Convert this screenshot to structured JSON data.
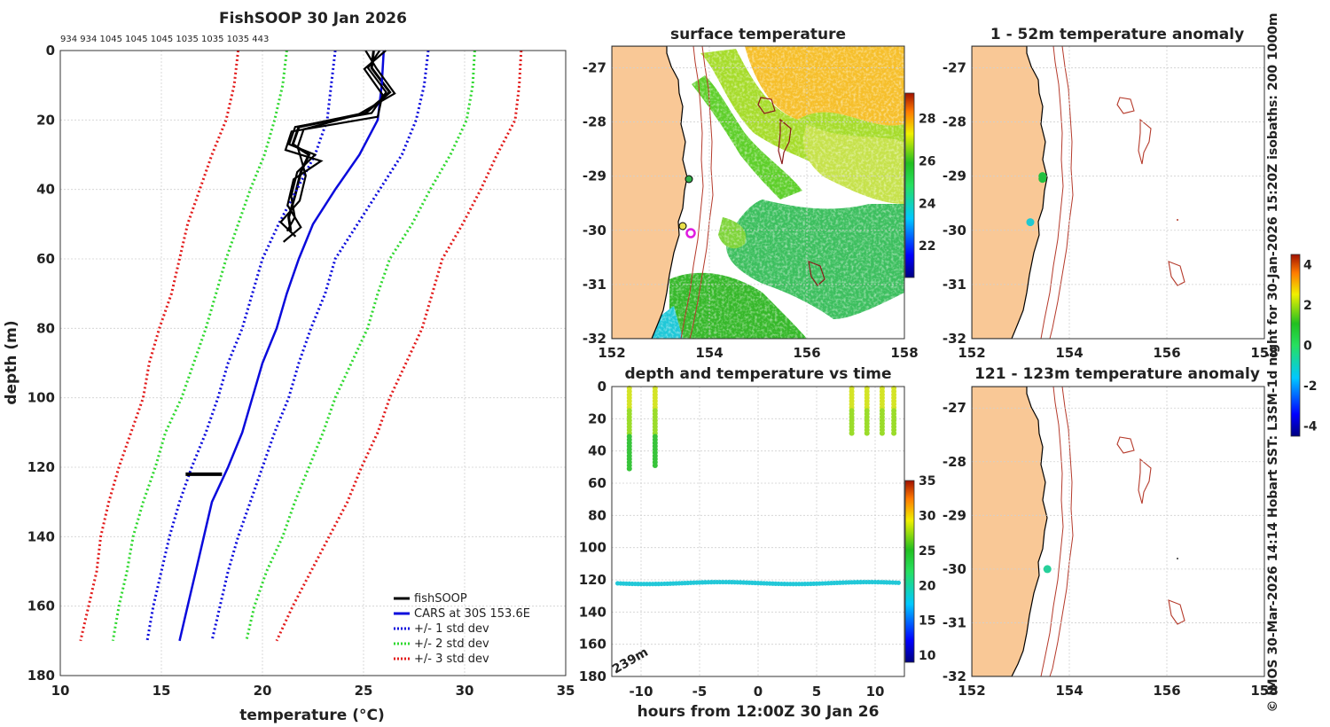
{
  "chart_data": [
    {
      "id": "profile",
      "type": "line",
      "title": "FishSOOP 30 Jan 2026",
      "top_annotation": "934 934 1045 1045 1045 1035 1035 1035 443",
      "xlabel": "temperature (°C)",
      "ylabel": "depth (m)",
      "xlim": [
        10,
        35
      ],
      "ylim": [
        0,
        180
      ],
      "xticks": [
        10,
        15,
        20,
        25,
        30,
        35
      ],
      "yticks": [
        0,
        20,
        40,
        60,
        80,
        100,
        120,
        140,
        160,
        180
      ],
      "legend_position": "bottom-right",
      "series": [
        {
          "name": "fishSOOP",
          "style": "solid",
          "color": "#000000",
          "width": 3,
          "depth": [
            0,
            5,
            12,
            18,
            22,
            27,
            30,
            35,
            42,
            48,
            52
          ],
          "values": [
            25.5,
            25.4,
            26.3,
            25.1,
            21.8,
            21.5,
            22.3,
            21.9,
            21.6,
            21.3,
            21.4
          ]
        },
        {
          "name": "CARS at 30S 153.6E",
          "style": "solid",
          "color": "#0a0adc",
          "width": 2.5,
          "depth": [
            0,
            10,
            20,
            30,
            40,
            50,
            60,
            70,
            80,
            90,
            100,
            110,
            120,
            130,
            140,
            150,
            160,
            170
          ],
          "values": [
            26.0,
            25.9,
            25.7,
            24.8,
            23.6,
            22.5,
            21.8,
            21.2,
            20.7,
            20.0,
            19.5,
            19.0,
            18.3,
            17.5,
            17.1,
            16.7,
            16.3,
            15.9
          ]
        },
        {
          "name": "+/- 1 std dev",
          "style": "dotted",
          "color": "#0a0adc",
          "width": 3,
          "depth": [
            0,
            10,
            20,
            30,
            40,
            50,
            60,
            70,
            80,
            90,
            100,
            110,
            120,
            130,
            140,
            150,
            160,
            170
          ],
          "values": [
            23.6,
            23.4,
            23.2,
            22.6,
            21.7,
            20.8,
            20.0,
            19.5,
            19.0,
            18.3,
            17.8,
            17.2,
            16.5,
            15.9,
            15.4,
            15.0,
            14.6,
            14.3
          ],
          "values_b": [
            28.2,
            28.0,
            27.6,
            26.9,
            25.8,
            24.7,
            23.6,
            23.1,
            22.4,
            21.8,
            21.3,
            20.6,
            20.0,
            19.4,
            18.8,
            18.3,
            17.9,
            17.5
          ]
        },
        {
          "name": "+/- 2 std dev",
          "style": "dotted",
          "color": "#2fd82f",
          "width": 3,
          "depth": [
            0,
            10,
            20,
            30,
            40,
            50,
            60,
            70,
            80,
            90,
            100,
            110,
            120,
            130,
            140,
            150,
            160,
            170
          ],
          "values": [
            21.2,
            21.0,
            20.6,
            20.1,
            19.4,
            18.8,
            18.2,
            17.7,
            17.2,
            16.6,
            16.0,
            15.2,
            14.7,
            14.1,
            13.6,
            13.3,
            12.9,
            12.6
          ],
          "values_b": [
            30.5,
            30.4,
            30.1,
            29.3,
            28.3,
            27.4,
            26.3,
            25.7,
            25.2,
            24.4,
            23.6,
            23.0,
            22.3,
            21.6,
            21.0,
            20.2,
            19.6,
            19.2
          ]
        },
        {
          "name": "+/- 3 std dev",
          "style": "dotted",
          "color": "#e21b1b",
          "width": 3,
          "depth": [
            0,
            10,
            20,
            30,
            40,
            50,
            60,
            70,
            80,
            90,
            100,
            110,
            120,
            130,
            140,
            150,
            160,
            170
          ],
          "values": [
            18.8,
            18.6,
            18.2,
            17.5,
            16.9,
            16.3,
            15.9,
            15.5,
            14.9,
            14.4,
            14.1,
            13.5,
            12.9,
            12.4,
            12.0,
            11.8,
            11.4,
            11.0
          ],
          "values_b": [
            32.8,
            32.7,
            32.5,
            31.6,
            30.8,
            29.9,
            28.9,
            28.4,
            27.9,
            27.1,
            26.3,
            25.7,
            24.9,
            24.2,
            23.3,
            22.4,
            21.5,
            20.7
          ]
        }
      ],
      "deep_segment": {
        "depth": 122,
        "values": [
          16.2,
          18.0
        ]
      }
    },
    {
      "id": "sst_map",
      "type": "heatmap",
      "title": "surface temperature",
      "xlim": [
        152,
        158
      ],
      "ylim": [
        -32,
        -26.6
      ],
      "xticks": [
        152,
        154,
        156,
        158
      ],
      "yticks": [
        -27,
        -28,
        -29,
        -30,
        -31,
        -32
      ],
      "colorbar_ticks": [
        22,
        24,
        26,
        28
      ],
      "colorbar_range": [
        20.5,
        29.2
      ]
    },
    {
      "id": "time_series",
      "type": "scatter",
      "title": "depth and temperature vs time",
      "xlabel": "hours from 12:00Z 30 Jan 26",
      "xlim": [
        -12.5,
        12.5
      ],
      "ylim": [
        0,
        180
      ],
      "xticks": [
        -10,
        -5,
        0,
        5,
        10
      ],
      "yticks": [
        0,
        20,
        40,
        60,
        80,
        100,
        120,
        140,
        160,
        180
      ],
      "depth_label": "239m",
      "colorbar_ticks": [
        10,
        15,
        20,
        25,
        30,
        35
      ],
      "colorbar_range": [
        9,
        35
      ],
      "shallow_casts": [
        {
          "hour": -11.0,
          "depth_max": 52,
          "temp": 23
        },
        {
          "hour": -8.8,
          "depth_max": 50,
          "temp": 23
        },
        {
          "hour": 8.0,
          "depth_max": 30,
          "temp": 22
        },
        {
          "hour": 9.3,
          "depth_max": 30,
          "temp": 22
        },
        {
          "hour": 10.6,
          "depth_max": 30,
          "temp": 22
        },
        {
          "hour": 11.6,
          "depth_max": 30,
          "temp": 22
        }
      ],
      "deep_track": {
        "depth": 122,
        "temp": 19,
        "hour_range": [
          -12.0,
          12.0
        ]
      }
    },
    {
      "id": "anomaly_upper",
      "type": "scatter",
      "title": "1 - 52m temperature anomaly",
      "xlim": [
        152,
        158
      ],
      "ylim": [
        -32,
        -26.6
      ],
      "xticks": [
        152,
        154,
        156,
        158
      ],
      "yticks": [
        -27,
        -28,
        -29,
        -30,
        -31,
        -32
      ],
      "points": [
        {
          "lon": 153.45,
          "lat": -29.0,
          "anomaly": 0.2
        },
        {
          "lon": 153.45,
          "lat": -29.05,
          "anomaly": 0.1
        },
        {
          "lon": 153.2,
          "lat": -29.85,
          "anomaly": -1.3
        }
      ]
    },
    {
      "id": "anomaly_lower",
      "type": "scatter",
      "title": "121 - 123m temperature anomaly",
      "xlim": [
        152,
        158
      ],
      "ylim": [
        -32,
        -26.6
      ],
      "xticks": [
        152,
        154,
        156,
        158
      ],
      "yticks": [
        -27,
        -28,
        -29,
        -30,
        -31,
        -32
      ],
      "points": [
        {
          "lon": 153.55,
          "lat": -30.0,
          "anomaly": -0.6
        }
      ],
      "colorbar_ticks": [
        4,
        2,
        0,
        -2,
        -4
      ],
      "colorbar_range": [
        -4.5,
        4.5
      ]
    }
  ],
  "side_caption": "© IMOS 30-Mar-2026 14:14 Hobart SST: L3SM-1d night for 30-Jan-2026 15:20Z isobaths: 200  1000m",
  "colors": {
    "land": "#f9c896",
    "fishsoop": "#000000",
    "cars": "#0a0adc",
    "std1": "#0a0adc",
    "std2": "#2fd82f",
    "std3": "#e21b1b",
    "isobath": "#b53a2b",
    "vessel_marker": "#e01be0"
  }
}
